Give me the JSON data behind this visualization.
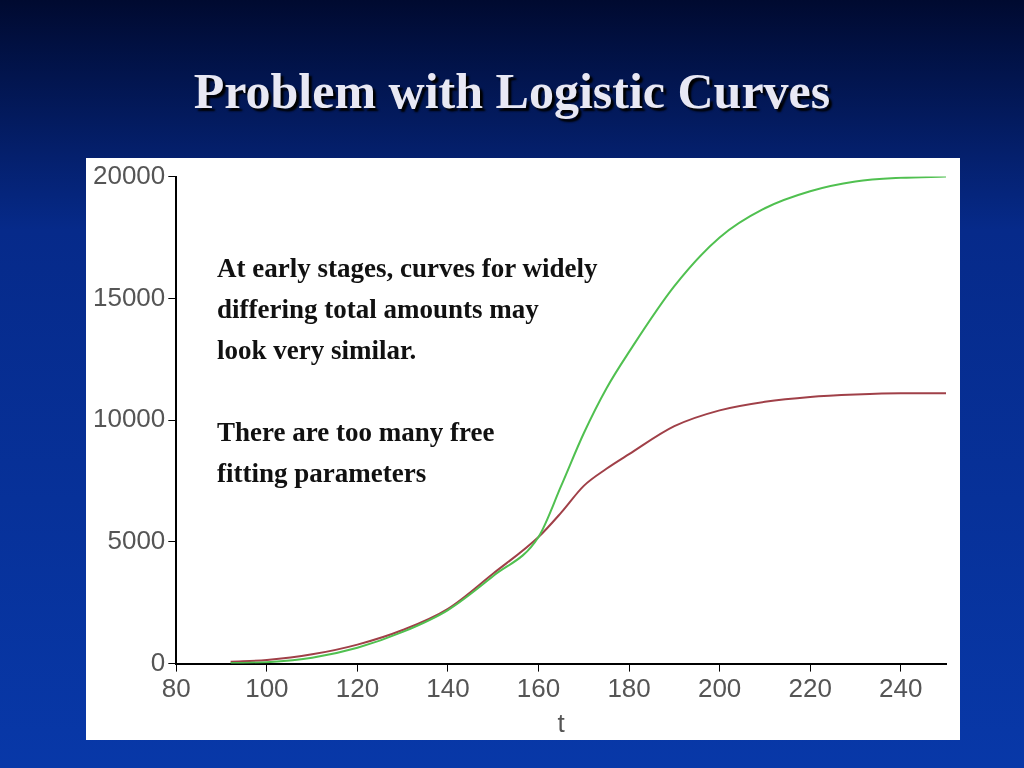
{
  "chart_data": {
    "type": "line",
    "title": "Problem with Logistic Curves",
    "xlabel": "t",
    "annotations": [
      "At early stages, curves for widely\ndiffering total amounts may\nlook very similar.",
      "There are too many free\nfitting parameters"
    ],
    "x": [
      92,
      100,
      110,
      120,
      130,
      140,
      150,
      160,
      165,
      170,
      175,
      180,
      190,
      200,
      210,
      220,
      230,
      240,
      250
    ],
    "series": [
      {
        "color": "#50c050",
        "values": [
          20,
          60,
          240,
          650,
          1300,
          2200,
          3600,
          5200,
          7300,
          9460,
          11300,
          12800,
          15500,
          17500,
          18700,
          19400,
          19800,
          19950,
          20000
        ]
      },
      {
        "color": "#a04048",
        "values": [
          80,
          150,
          380,
          780,
          1380,
          2250,
          3700,
          5200,
          6200,
          7300,
          8000,
          8600,
          9750,
          10400,
          10750,
          10950,
          11050,
          11100,
          11100
        ]
      }
    ],
    "xlim": [
      80,
      250
    ],
    "xticks": [
      80,
      100,
      120,
      140,
      160,
      180,
      200,
      220,
      240
    ],
    "ylim": [
      0,
      20000
    ],
    "yticks": [
      0,
      5000,
      10000,
      15000,
      20000
    ],
    "grid": false,
    "legend": false,
    "marker": "none",
    "line_style": "solid"
  }
}
